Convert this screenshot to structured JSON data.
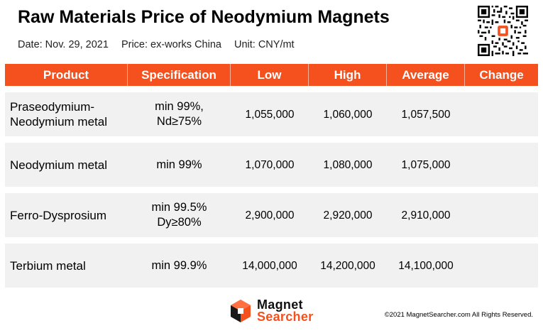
{
  "header": {
    "title": "Raw Materials Price of Neodymium Magnets",
    "date": "Date: Nov. 29, 2021",
    "price_basis": "Price: ex-works China",
    "unit": "Unit: CNY/mt"
  },
  "colors": {
    "accent": "#f4511e",
    "row_bg": "#f1f1f1"
  },
  "table": {
    "columns": [
      "Product",
      "Specification",
      "Low",
      "High",
      "Average",
      "Change"
    ],
    "rows": [
      {
        "product": [
          "Praseodymium-",
          "Neodymium metal"
        ],
        "spec": [
          "min 99%,",
          "Nd≥75%"
        ],
        "low": "1,055,000",
        "high": "1,060,000",
        "average": "1,057,500",
        "change": ""
      },
      {
        "product": [
          "Neodymium metal"
        ],
        "spec": [
          "min 99%"
        ],
        "low": "1,070,000",
        "high": "1,080,000",
        "average": "1,075,000",
        "change": ""
      },
      {
        "product": [
          "Ferro-Dysprosium"
        ],
        "spec": [
          "min 99.5%",
          "Dy≥80%"
        ],
        "low": "2,900,000",
        "high": "2,920,000",
        "average": "2,910,000",
        "change": ""
      },
      {
        "product": [
          "Terbium metal"
        ],
        "spec": [
          "min 99.9%"
        ],
        "low": "14,000,000",
        "high": "14,200,000",
        "average": "14,100,000",
        "change": ""
      }
    ]
  },
  "footer": {
    "logo_line1": "Magnet",
    "logo_line2": "Searcher",
    "copyright": "©2021 MagnetSearcher.com All Rights Reserved."
  },
  "qr_icon": "qr-code-icon"
}
